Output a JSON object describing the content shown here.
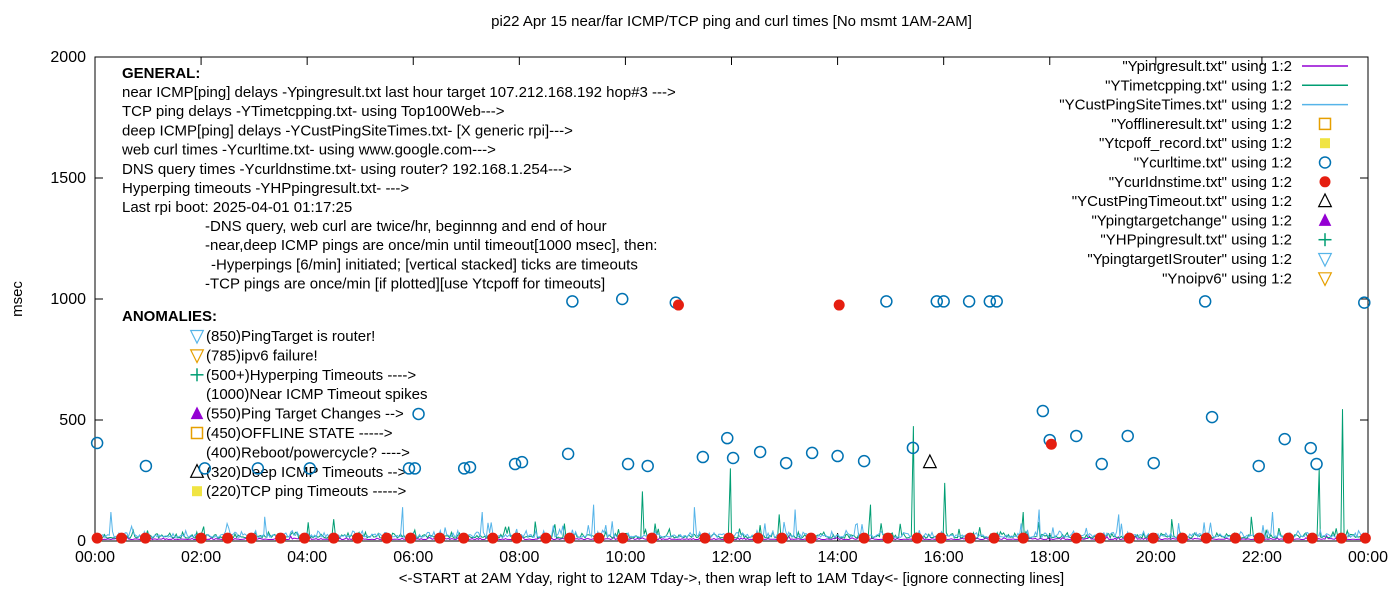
{
  "chart_data": {
    "type": "line+scatter",
    "title": "pi22 Apr 15  near/far ICMP/TCP ping and curl times [No msmt 1AM-2AM]",
    "xlabel": "<-START at 2AM Yday, right to 12AM Tday->, then wrap left to 1AM Tday<- [ignore connecting lines]",
    "ylabel": "msec",
    "ylim": [
      0,
      2000
    ],
    "xlim_hours": [
      0,
      24
    ],
    "yticks": [
      0,
      500,
      1000,
      1500,
      2000
    ],
    "xtick_hours": [
      0,
      2,
      4,
      6,
      8,
      10,
      12,
      14,
      16,
      18,
      20,
      22,
      24
    ],
    "xtick_labels": [
      "00:00",
      "02:00",
      "04:00",
      "06:00",
      "08:00",
      "10:00",
      "12:00",
      "14:00",
      "16:00",
      "18:00",
      "20:00",
      "22:00",
      "00:00"
    ],
    "grid": false,
    "legend_position": "top-right-inside",
    "series": [
      {
        "name": "Ypingresult.txt",
        "type": "line",
        "color": "#9400D3",
        "baseline": 6,
        "noise": 8,
        "seed": 11,
        "spikes": []
      },
      {
        "name": "YTimetcpping.txt",
        "type": "line",
        "color": "#009E73",
        "baseline": 12,
        "noise": 28,
        "seed": 22,
        "spikes": [
          [
            2.05,
            60
          ],
          [
            4.5,
            90
          ],
          [
            8.3,
            80
          ],
          [
            10.32,
            205
          ],
          [
            11.98,
            300
          ],
          [
            12.9,
            110
          ],
          [
            14.62,
            150
          ],
          [
            15.43,
            475
          ],
          [
            16.02,
            240
          ],
          [
            17.5,
            120
          ],
          [
            20.3,
            90
          ],
          [
            21.8,
            100
          ],
          [
            23.08,
            300
          ],
          [
            23.52,
            545
          ]
        ]
      },
      {
        "name": "YCustPingSiteTimes.txt",
        "type": "line",
        "color": "#56B4E9",
        "baseline": 15,
        "noise": 32,
        "seed": 33,
        "spikes": [
          [
            0.3,
            120
          ],
          [
            3.2,
            100
          ],
          [
            5.8,
            140
          ],
          [
            7.3,
            120
          ],
          [
            9.4,
            150
          ],
          [
            11.3,
            140
          ],
          [
            13.2,
            130
          ],
          [
            17.8,
            130
          ],
          [
            19.3,
            110
          ],
          [
            22.2,
            120
          ]
        ]
      },
      {
        "name": "Ycurltime.txt",
        "type": "scatter",
        "marker": "circle-open",
        "color": "#0072B2",
        "points": [
          [
            0.04,
            405
          ],
          [
            0.96,
            310
          ],
          [
            2.07,
            300
          ],
          [
            3.07,
            300
          ],
          [
            4.05,
            300
          ],
          [
            5.92,
            300
          ],
          [
            6.03,
            300
          ],
          [
            6.1,
            525
          ],
          [
            6.96,
            300
          ],
          [
            7.07,
            305
          ],
          [
            7.92,
            318
          ],
          [
            8.05,
            326
          ],
          [
            8.92,
            360
          ],
          [
            9.0,
            990
          ],
          [
            9.94,
            1000
          ],
          [
            10.05,
            318
          ],
          [
            10.42,
            310
          ],
          [
            10.95,
            985
          ],
          [
            11.46,
            347
          ],
          [
            11.92,
            425
          ],
          [
            12.03,
            343
          ],
          [
            12.54,
            368
          ],
          [
            13.03,
            322
          ],
          [
            13.52,
            364
          ],
          [
            14.0,
            351
          ],
          [
            14.5,
            330
          ],
          [
            14.92,
            990
          ],
          [
            15.42,
            385
          ],
          [
            15.87,
            990
          ],
          [
            16.0,
            990
          ],
          [
            16.48,
            990
          ],
          [
            16.87,
            990
          ],
          [
            17.0,
            990
          ],
          [
            17.87,
            537
          ],
          [
            18.0,
            417
          ],
          [
            18.5,
            434
          ],
          [
            18.98,
            318
          ],
          [
            19.47,
            434
          ],
          [
            19.96,
            322
          ],
          [
            20.93,
            990
          ],
          [
            21.06,
            512
          ],
          [
            21.94,
            310
          ],
          [
            22.43,
            421
          ],
          [
            22.92,
            384
          ],
          [
            23.03,
            318
          ],
          [
            23.93,
            985
          ]
        ]
      },
      {
        "name": "YcurIdnstime.txt",
        "type": "scatter",
        "marker": "circle-filled",
        "color": "#E51E10",
        "points": [
          [
            0.04,
            12
          ],
          [
            0.5,
            12
          ],
          [
            0.95,
            12
          ],
          [
            2.0,
            12
          ],
          [
            2.5,
            12
          ],
          [
            2.95,
            12
          ],
          [
            3.5,
            12
          ],
          [
            3.95,
            12
          ],
          [
            4.5,
            12
          ],
          [
            4.95,
            12
          ],
          [
            5.5,
            12
          ],
          [
            5.95,
            12
          ],
          [
            6.5,
            12
          ],
          [
            6.95,
            12
          ],
          [
            7.5,
            12
          ],
          [
            7.95,
            12
          ],
          [
            8.5,
            12
          ],
          [
            8.95,
            12
          ],
          [
            9.5,
            12
          ],
          [
            9.95,
            12
          ],
          [
            10.5,
            12
          ],
          [
            11.0,
            975
          ],
          [
            11.5,
            12
          ],
          [
            11.95,
            12
          ],
          [
            12.5,
            12
          ],
          [
            12.95,
            12
          ],
          [
            13.5,
            12
          ],
          [
            14.03,
            975
          ],
          [
            14.5,
            12
          ],
          [
            14.95,
            12
          ],
          [
            15.5,
            12
          ],
          [
            15.95,
            12
          ],
          [
            16.5,
            12
          ],
          [
            16.95,
            12
          ],
          [
            17.5,
            12
          ],
          [
            18.03,
            400
          ],
          [
            18.5,
            12
          ],
          [
            18.95,
            12
          ],
          [
            19.5,
            12
          ],
          [
            19.95,
            12
          ],
          [
            20.5,
            12
          ],
          [
            20.95,
            12
          ],
          [
            21.5,
            12
          ],
          [
            21.95,
            12
          ],
          [
            22.5,
            12
          ],
          [
            22.95,
            12
          ],
          [
            23.5,
            12
          ],
          [
            23.95,
            12
          ]
        ]
      },
      {
        "name": "YCustPingTimeout.txt",
        "type": "scatter",
        "marker": "tri-up-open",
        "color": "#000000",
        "points": [
          [
            15.74,
            326
          ]
        ]
      },
      {
        "name": "Yofflineresult.txt",
        "type": "scatter",
        "marker": "square-open",
        "color": "#E69F00",
        "points": []
      },
      {
        "name": "Ytcpoff_record.txt",
        "type": "scatter",
        "marker": "square-filled",
        "color": "#F0E442",
        "points": []
      },
      {
        "name": "Ypingtargetchange",
        "type": "scatter",
        "marker": "tri-up-filled",
        "color": "#9400D3",
        "points": []
      },
      {
        "name": "YHPpingresult.txt",
        "type": "scatter",
        "marker": "plus",
        "color": "#009E73",
        "points": []
      },
      {
        "name": "YpingtargetISrouter",
        "type": "scatter",
        "marker": "tri-down-open",
        "color": "#56B4E9",
        "points": []
      },
      {
        "name": "Ynoipv6",
        "type": "scatter",
        "marker": "tri-down-open",
        "color": "#E69F00",
        "points": []
      }
    ]
  },
  "legend": {
    "entries": [
      {
        "label": "\"Ypingresult.txt\" using 1:2",
        "sample": "line",
        "color": "#9400D3"
      },
      {
        "label": "\"YTimetcpping.txt\" using 1:2",
        "sample": "line",
        "color": "#009E73"
      },
      {
        "label": "\"YCustPingSiteTimes.txt\" using 1:2",
        "sample": "line",
        "color": "#56B4E9"
      },
      {
        "label": "\"Yofflineresult.txt\" using 1:2",
        "sample": "square-open",
        "color": "#E69F00"
      },
      {
        "label": "\"Ytcpoff_record.txt\" using 1:2",
        "sample": "square-filled",
        "color": "#F0E442"
      },
      {
        "label": "\"Ycurltime.txt\" using 1:2",
        "sample": "circle-open",
        "color": "#0072B2"
      },
      {
        "label": "\"YcurIdnstime.txt\" using 1:2",
        "sample": "circle-filled",
        "color": "#E51E10"
      },
      {
        "label": "\"YCustPingTimeout.txt\" using 1:2",
        "sample": "tri-up-open",
        "color": "#000000"
      },
      {
        "label": "\"Ypingtargetchange\" using 1:2",
        "sample": "tri-up-filled",
        "color": "#9400D3"
      },
      {
        "label": "\"YHPpingresult.txt\" using 1:2",
        "sample": "plus",
        "color": "#009E73"
      },
      {
        "label": "\"YpingtargetISrouter\" using 1:2",
        "sample": "tri-down-open",
        "color": "#56B4E9"
      },
      {
        "label": "\"Ynoipv6\" using 1:2",
        "sample": "tri-down-open",
        "color": "#E69F00"
      }
    ]
  },
  "general": {
    "heading": "GENERAL:",
    "lines": [
      "near ICMP[ping] delays -Ypingresult.txt last hour target 107.212.168.192 hop#3 --->",
      "TCP ping delays -YTimetcpping.txt- using Top100Web--->",
      "deep ICMP[ping] delays -YCustPingSiteTimes.txt- [X generic rpi]--->",
      "web curl times -Ycurltime.txt- using www.google.com--->",
      "DNS query times -Ycurldnstime.txt- using router? 192.168.1.254--->",
      "Hyperping timeouts -YHPpingresult.txt- --->",
      "Last rpi boot: 2025-04-01 01:17:25"
    ],
    "notes": [
      {
        "text": "-DNS query, web curl are twice/hr, beginnng and end of hour",
        "x": 205
      },
      {
        "text": "-near,deep ICMP pings are once/min until timeout[1000 msec], then:",
        "x": 205
      },
      {
        "text": "-Hyperpings [6/min] initiated; [vertical stacked] ticks are timeouts",
        "x": 211
      },
      {
        "text": "-TCP pings are once/min [if plotted][use Ytcpoff for timeouts]",
        "x": 205
      }
    ]
  },
  "anomalies": {
    "heading": "ANOMALIES:",
    "items": [
      {
        "marker": "tri-down-open",
        "color": "#56B4E9",
        "text": "(850)PingTarget is router!"
      },
      {
        "marker": "tri-down-open",
        "color": "#E69F00",
        "text": "(785)ipv6 failure!"
      },
      {
        "marker": "plus",
        "color": "#009E73",
        "text": "(500+)Hyperping Timeouts ---->"
      },
      {
        "marker": "none",
        "color": "",
        "text": "(1000)Near ICMP Timeout spikes"
      },
      {
        "marker": "tri-up-filled",
        "color": "#9400D3",
        "text": "(550)Ping Target Changes -->"
      },
      {
        "marker": "square-open",
        "color": "#E69F00",
        "text": "(450)OFFLINE STATE ----->"
      },
      {
        "marker": "none",
        "color": "",
        "text": "(400)Reboot/powercycle? ---->"
      },
      {
        "marker": "tri-up-open",
        "color": "#000000",
        "text": "(320)Deep ICMP Timeouts -->"
      },
      {
        "marker": "square-filled",
        "color": "#F0E442",
        "text": "(220)TCP ping Timeouts ----->"
      }
    ]
  }
}
